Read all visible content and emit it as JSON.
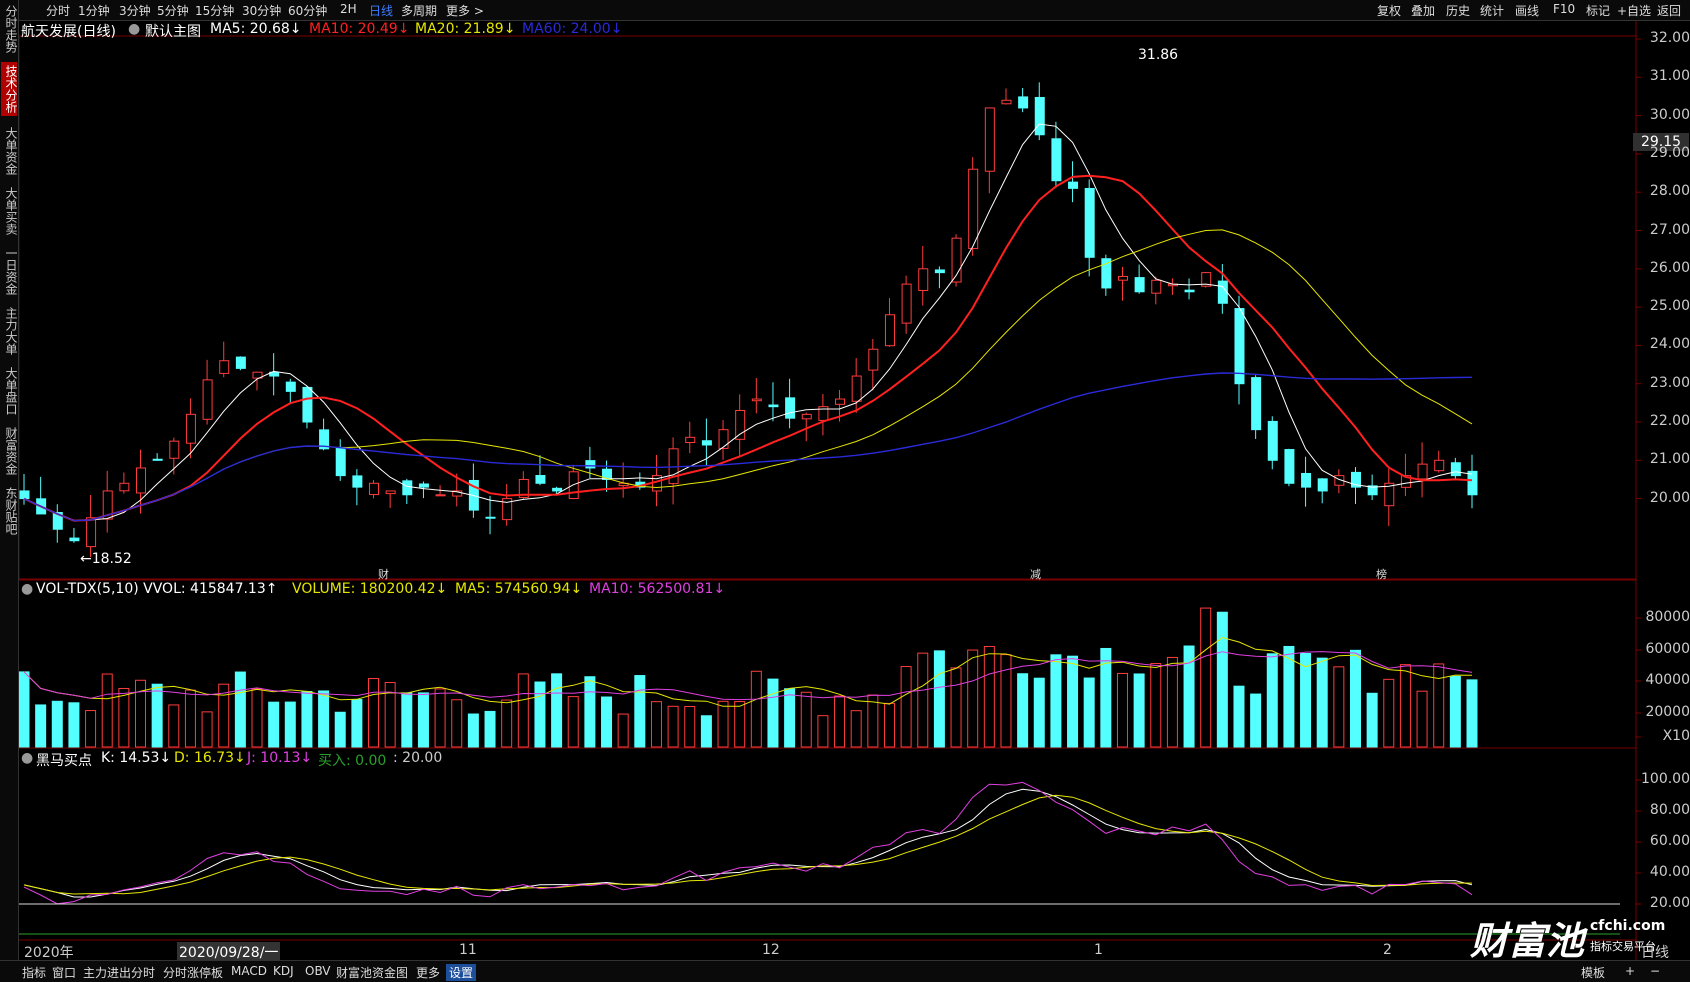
{
  "toolbar": {
    "timeframes": [
      "分时",
      "1分钟",
      "3分钟",
      "5分钟",
      "15分钟",
      "30分钟",
      "60分钟",
      "2H",
      "日线",
      "多周期",
      "更多 >"
    ],
    "active_timeframe": "日线",
    "right_tools": [
      "复权",
      "叠加",
      "历史",
      "统计",
      "画线",
      "F10",
      "标记",
      "+自选",
      "返回"
    ]
  },
  "left_nav": [
    "分时走势",
    "技术分析",
    "大单资金",
    "大单买卖",
    "一日资金",
    "主力大单",
    "大单盘口",
    "财富资金",
    "东财贴吧"
  ],
  "main": {
    "title": "航天发展(日线)",
    "chart_name": "默认主图",
    "ma5": "MA5: 20.68↓",
    "ma10": "MA10: 20.49↓",
    "ma20": "MA20: 21.89↓",
    "ma60": "MA60: 24.00↓",
    "high_label": "31.86",
    "low_label": "←18.52",
    "current_price": "29.15",
    "y_labels": [
      "32.00",
      "31.00",
      "30.00",
      "29.00",
      "28.00",
      "27.00",
      "26.00",
      "25.00",
      "24.00",
      "23.00",
      "22.00",
      "21.00",
      "20.00"
    ],
    "event_markers": [
      "财",
      "减",
      "榜"
    ]
  },
  "volume": {
    "title": "VOL-TDX(5,10) VVOL: 415847.13↑",
    "volume": "VOLUME: 180200.42↓",
    "ma5": "MA5: 574560.94↓",
    "ma10": "MA10: 562500.81↓",
    "y_labels": [
      "80000",
      "60000",
      "40000",
      "20000",
      "X10"
    ]
  },
  "indicator": {
    "title": "黑马买点",
    "k": "K: 14.53↓",
    "d": "D: 16.73↓",
    "j": "J: 10.13↓",
    "buy": "买入: 0.00",
    "level": ": 20.00",
    "y_labels": [
      "100.00",
      "80.00",
      "60.00",
      "40.00",
      "20.00"
    ]
  },
  "x_axis": {
    "labels": [
      "2020年",
      "2020/09/28/一",
      "11",
      "12",
      "1",
      "2"
    ],
    "period_label": "日线"
  },
  "bottom_tabs": [
    "指标",
    "窗口",
    "主力进出分时",
    "分时涨停板",
    "MACD",
    "KDJ",
    "OBV",
    "财富池资金图",
    "更多",
    "设置"
  ],
  "bottom_active": "设置",
  "bottom_right": [
    "模板",
    "+",
    "−"
  ],
  "logo": {
    "brand": "财富池",
    "site": "cfchi.com",
    "tagline": "指标交易平台"
  },
  "colors": {
    "up": "#ff3c3c",
    "down": "#54ffff",
    "ma5": "#ffffff",
    "ma10": "#ff2020",
    "ma20": "#e6e600",
    "ma60": "#2a2ad8",
    "vol_ma10": "#e040e0",
    "grid": "#7a0000"
  }
}
